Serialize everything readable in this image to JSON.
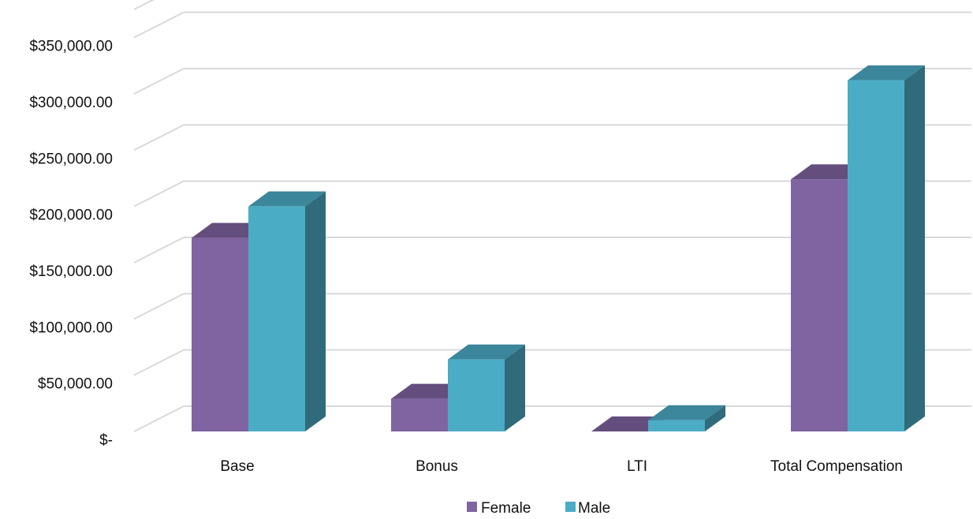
{
  "chart_data": {
    "type": "bar",
    "title": "",
    "xlabel": "",
    "ylabel": "",
    "categories": [
      "Base",
      "Bonus",
      "LTI",
      "Total Compensation"
    ],
    "series": [
      {
        "name": "Female",
        "values": [
          172000,
          29000,
          0,
          224000
        ],
        "color": "#8064A2"
      },
      {
        "name": "Male",
        "values": [
          200000,
          64000,
          10000,
          312000
        ],
        "color": "#4BACC6"
      }
    ],
    "ylim": [
      0,
      375000
    ],
    "y_ticks": [
      0,
      50000,
      100000,
      150000,
      200000,
      250000,
      300000,
      350000
    ],
    "y_tick_labels": [
      "$-",
      "$50,000.00",
      "$100,000.00",
      "$150,000.00",
      "$200,000.00",
      "$250,000.00",
      "$300,000.00",
      "$350,000.00"
    ],
    "grid": true,
    "legend": "bottom",
    "style": "3d-clustered-column"
  }
}
